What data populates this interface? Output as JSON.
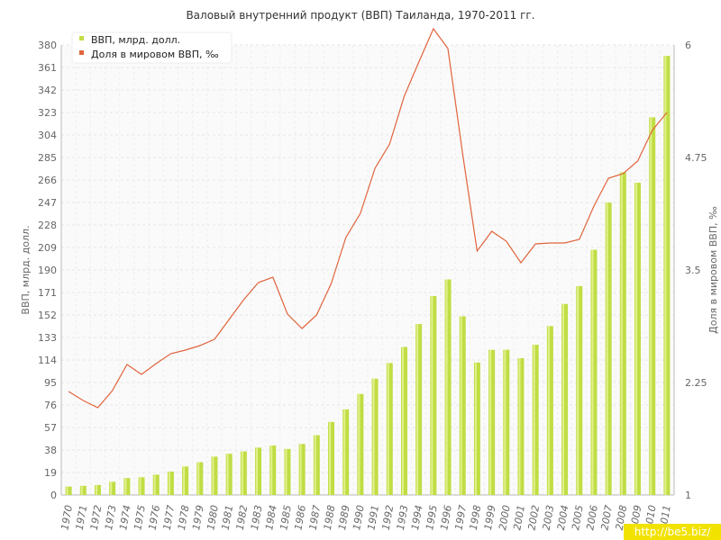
{
  "chart_data": {
    "type": "bar",
    "title": "Валовый внутренний продукт (ВВП) Таиланда, 1970-2011 гг.",
    "ylabel": "ВВП, млрд. долл.",
    "y2label": "Доля в мировом ВВП, ‰",
    "ylim": [
      0,
      380
    ],
    "y2lim": [
      1,
      6
    ],
    "yticks": [
      "0",
      "19",
      "38",
      "57",
      "76",
      "95",
      "114",
      "133",
      "152",
      "171",
      "190",
      "209",
      "228",
      "247",
      "266",
      "285",
      "304",
      "323",
      "342",
      "361",
      "380"
    ],
    "y2ticks": [
      "1",
      "2.25",
      "3.5",
      "4.75",
      "6"
    ],
    "grid": true,
    "legend_position": "top-left",
    "categories": [
      "1970",
      "1971",
      "1972",
      "1973",
      "1974",
      "1975",
      "1976",
      "1977",
      "1978",
      "1979",
      "1980",
      "1981",
      "1982",
      "1983",
      "1984",
      "1985",
      "1986",
      "1987",
      "1988",
      "1989",
      "1990",
      "1991",
      "1992",
      "1993",
      "1994",
      "1995",
      "1996",
      "1997",
      "1998",
      "1999",
      "2000",
      "2001",
      "2002",
      "2003",
      "2004",
      "2005",
      "2006",
      "2007",
      "2008",
      "2009",
      "2010",
      "2011"
    ],
    "series": [
      {
        "name": "ВВП, млрд. долл.",
        "type": "bar",
        "axis": "left",
        "color": "#c0dd44",
        "values": [
          7.1,
          7.7,
          8.4,
          11.1,
          14.3,
          15.0,
          17.2,
          19.8,
          24.1,
          27.7,
          32.4,
          34.8,
          36.8,
          40.0,
          41.8,
          38.9,
          43.1,
          50.5,
          61.7,
          72.3,
          85.3,
          98.2,
          111.4,
          125.0,
          144.3,
          168.0,
          182.0,
          150.9,
          111.9,
          122.6,
          122.7,
          115.5,
          126.9,
          142.6,
          161.3,
          176.4,
          207.1,
          246.9,
          272.6,
          263.7,
          318.9,
          370.8
        ]
      },
      {
        "name": "Доля в мировом ВВП, ‰",
        "type": "line",
        "axis": "right",
        "color": "#e0643c",
        "values": [
          2.15,
          2.05,
          1.97,
          2.16,
          2.45,
          2.34,
          2.46,
          2.57,
          2.61,
          2.66,
          2.73,
          2.95,
          3.17,
          3.36,
          3.42,
          3.01,
          2.85,
          3.0,
          3.35,
          3.86,
          4.13,
          4.63,
          4.9,
          5.43,
          5.81,
          6.18,
          5.96,
          4.8,
          3.71,
          3.93,
          3.82,
          3.58,
          3.79,
          3.8,
          3.8,
          3.84,
          4.21,
          4.52,
          4.57,
          4.71,
          5.05,
          5.25
        ]
      }
    ]
  },
  "watermark": "http://be5.biz/"
}
